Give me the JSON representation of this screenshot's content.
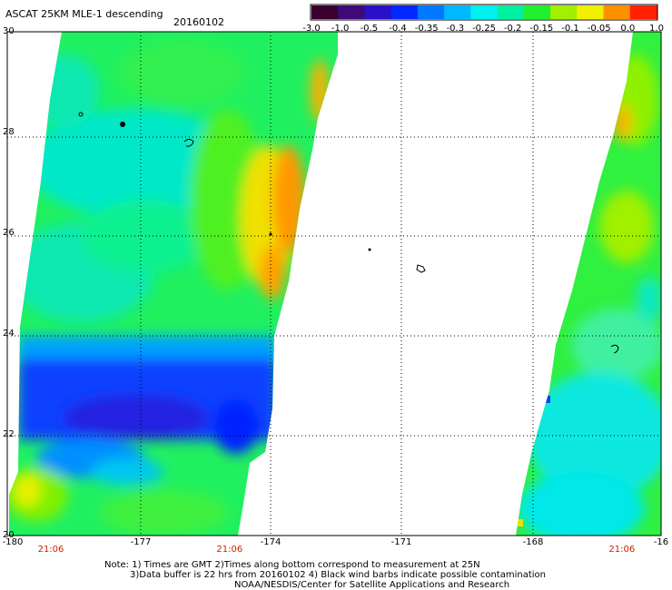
{
  "title": "ASCAT 25KM MLE-1 descending",
  "date": "20160102",
  "colorbar": {
    "labels": [
      "-3.0",
      "-1.0",
      "-0.5",
      "-0.4",
      "-0.35",
      "-0.3",
      "-0.25",
      "-0.2",
      "-0.15",
      "-0.1",
      "-0.05",
      "0.0",
      "1.0"
    ],
    "colors": [
      "#3a0030",
      "#3d0a78",
      "#2a10c8",
      "#0028ff",
      "#0078ff",
      "#00b8ff",
      "#00f0f0",
      "#00f0a0",
      "#20f030",
      "#a0f000",
      "#f0f000",
      "#ff9000",
      "#ff2000"
    ]
  },
  "map": {
    "lat_labels": [
      "30",
      "28",
      "26",
      "24",
      "22",
      "20"
    ],
    "lon_labels": [
      "-180",
      "-177",
      "-174",
      "-171",
      "-168",
      "-16"
    ],
    "time_labels": [
      {
        "text": "21:06",
        "lon": -179
      },
      {
        "text": "21:06",
        "lon": -174.9
      },
      {
        "text": "21:06",
        "lon": -165.9
      }
    ],
    "extent": {
      "lon_min": -180,
      "lon_max": -165,
      "lat_min": 20,
      "lat_max": 30
    }
  },
  "note": {
    "line1": "Note: 1) Times are GMT 2)Times along bottom correspond to measurement at 25N",
    "line2": "3)Data buffer is 22 hrs from 20160102 4) Black wind barbs indicate possible contamination",
    "line3": "NOAA/NESDIS/Center for Satellite Applications and Research"
  }
}
